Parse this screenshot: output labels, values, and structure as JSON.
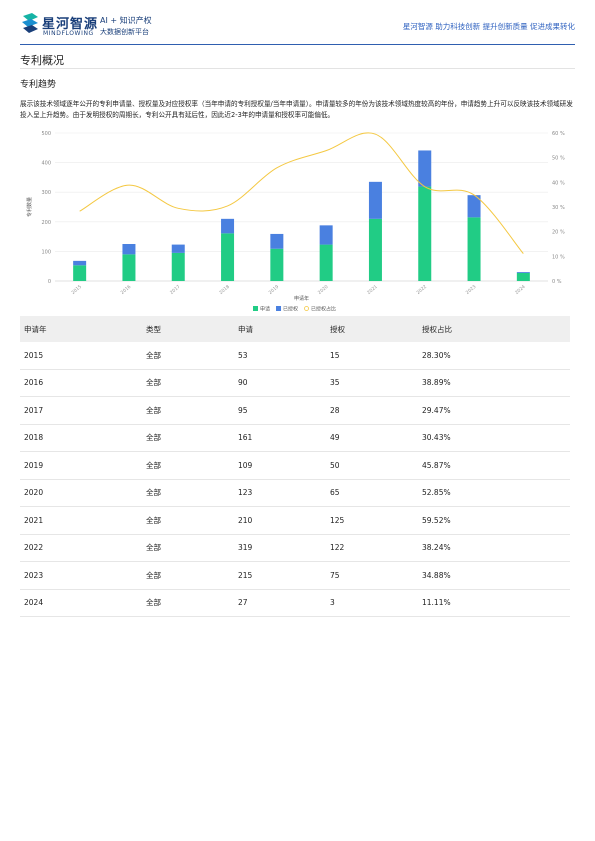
{
  "header": {
    "brand": "星河智源",
    "brand_en": "MINDFLOWING",
    "tagline_1": "AI + 知识产权",
    "tagline_2": "大数据创新平台",
    "slogan": "星河智源 助力科技创新 提升创新质量 促进成果转化"
  },
  "section_title": "专利概况",
  "subsection_title": "专利趋势",
  "description": "展示该技术领域逐年公开的专利申请量、授权量及对应授权率（当年申请的专利授权量/当年申请量）。申请量较多的年份为该技术领域热度较高的年份，申请趋势上升可以反映该技术领域研发投入呈上升趋势。由于发明授权的周期长，专利公开具有延后性，因此近2-3年的申请量和授权率可能偏低。",
  "chart_data": {
    "type": "bar",
    "stacked": true,
    "x_label": "申请年",
    "y_label": "专利数量",
    "categories": [
      "2015",
      "2016",
      "2017",
      "2018",
      "2019",
      "2020",
      "2021",
      "2022",
      "2023",
      "2024"
    ],
    "series": [
      {
        "name": "申请",
        "color": "#21cc85",
        "values": [
          53,
          90,
          95,
          161,
          109,
          123,
          210,
          319,
          215,
          27
        ]
      },
      {
        "name": "已授权",
        "color": "#4a80e0",
        "values": [
          15,
          35,
          28,
          49,
          50,
          65,
          125,
          122,
          75,
          3
        ]
      },
      {
        "name": "已授权占比",
        "color": "#f4c842",
        "type": "line",
        "axis": "y2",
        "values": [
          28.3,
          38.89,
          29.47,
          30.43,
          45.87,
          52.85,
          59.52,
          38.24,
          34.88,
          11.11
        ]
      }
    ],
    "ylim": [
      0,
      500
    ],
    "yticks": [
      0,
      100,
      200,
      300,
      400,
      500
    ],
    "y2lim": [
      0,
      60
    ],
    "y2ticks": [
      {
        "value": 0,
        "label": "0 %"
      },
      {
        "value": 10,
        "label": "10 %"
      },
      {
        "value": 20,
        "label": "20 %"
      },
      {
        "value": 30,
        "label": "30 %"
      },
      {
        "value": 40,
        "label": "40 %"
      },
      {
        "value": 50,
        "label": "50 %"
      },
      {
        "value": 60,
        "label": "60 %"
      }
    ],
    "grid": true,
    "legend": "bottom"
  },
  "table": {
    "columns": [
      "申请年",
      "类型",
      "申请",
      "授权",
      "授权占比"
    ],
    "rows": [
      [
        "2015",
        "全部",
        "53",
        "15",
        "28.30%"
      ],
      [
        "2016",
        "全部",
        "90",
        "35",
        "38.89%"
      ],
      [
        "2017",
        "全部",
        "95",
        "28",
        "29.47%"
      ],
      [
        "2018",
        "全部",
        "161",
        "49",
        "30.43%"
      ],
      [
        "2019",
        "全部",
        "109",
        "50",
        "45.87%"
      ],
      [
        "2020",
        "全部",
        "123",
        "65",
        "52.85%"
      ],
      [
        "2021",
        "全部",
        "210",
        "125",
        "59.52%"
      ],
      [
        "2022",
        "全部",
        "319",
        "122",
        "38.24%"
      ],
      [
        "2023",
        "全部",
        "215",
        "75",
        "34.88%"
      ],
      [
        "2024",
        "全部",
        "27",
        "3",
        "11.11%"
      ]
    ]
  }
}
